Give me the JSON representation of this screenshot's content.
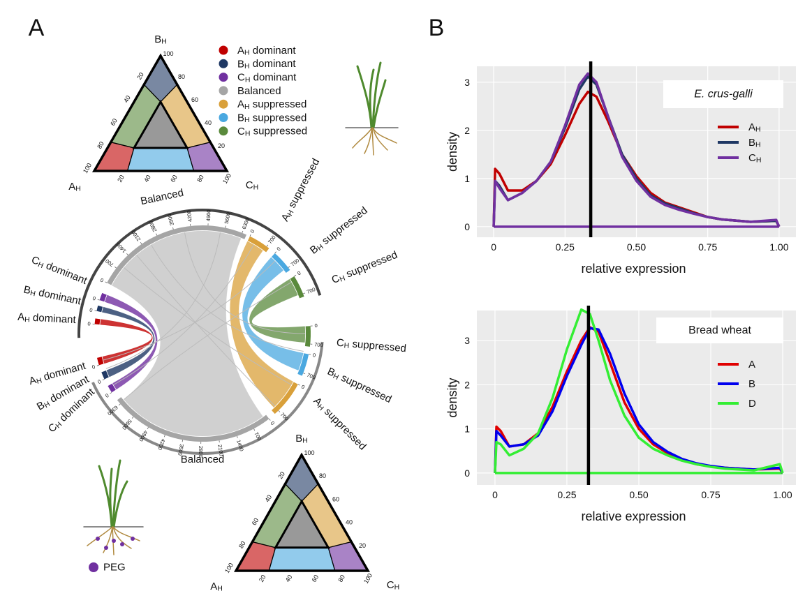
{
  "panel_labels": [
    "A",
    "B"
  ],
  "categories": [
    {
      "base": "A",
      "sub": "H",
      "rest": " dominant",
      "color": "#c00000"
    },
    {
      "base": "B",
      "sub": "H",
      "rest": " dominant",
      "color": "#1f3864"
    },
    {
      "base": "C",
      "sub": "H",
      "rest": " dominant",
      "color": "#7030a0"
    },
    {
      "base": "Balanced",
      "color": "#a5a5a5"
    },
    {
      "base": "A",
      "sub": "H",
      "rest": " suppressed",
      "color": "#d9a03a"
    },
    {
      "base": "B",
      "sub": "H",
      "rest": " suppressed",
      "color": "#4aa8e0"
    },
    {
      "base": "C",
      "sub": "H",
      "rest": " suppressed",
      "color": "#5a8a3c"
    }
  ],
  "chord": {
    "balanced_ticks": [
      0,
      700,
      1400,
      2100,
      2800,
      3500,
      4200,
      4900,
      5600,
      6300
    ],
    "group_ticks": [
      0,
      700
    ]
  },
  "ternary_ticks": [
    20,
    40,
    60,
    80,
    100
  ],
  "peg_label": "PEG",
  "chart_data": [
    {
      "type": "line",
      "legend_title": "E. crus-galli",
      "legend_italic": true,
      "x": [
        0,
        0.005,
        0.02,
        0.05,
        0.1,
        0.15,
        0.2,
        0.25,
        0.3,
        0.33,
        0.36,
        0.4,
        0.45,
        0.5,
        0.55,
        0.6,
        0.65,
        0.7,
        0.75,
        0.8,
        0.9,
        0.99,
        1.0
      ],
      "series": [
        {
          "name": "A",
          "name_sub": "H",
          "color": "#c00000",
          "values": [
            0,
            1.2,
            1.1,
            0.75,
            0.75,
            0.95,
            1.3,
            1.9,
            2.55,
            2.8,
            2.7,
            2.2,
            1.5,
            1.05,
            0.7,
            0.5,
            0.4,
            0.3,
            0.2,
            0.15,
            0.1,
            0.12,
            0
          ]
        },
        {
          "name": "B",
          "name_sub": "H",
          "color": "#1f3864",
          "values": [
            0,
            0.95,
            0.85,
            0.55,
            0.7,
            0.95,
            1.35,
            2.05,
            2.85,
            3.12,
            2.95,
            2.3,
            1.5,
            1.0,
            0.65,
            0.48,
            0.38,
            0.28,
            0.2,
            0.15,
            0.1,
            0.12,
            0
          ]
        },
        {
          "name": "C",
          "name_sub": "H",
          "color": "#7030a0",
          "values": [
            0,
            0.95,
            0.8,
            0.55,
            0.7,
            0.95,
            1.35,
            2.1,
            2.95,
            3.18,
            3.0,
            2.3,
            1.45,
            0.95,
            0.62,
            0.45,
            0.35,
            0.27,
            0.2,
            0.15,
            0.1,
            0.14,
            0
          ]
        }
      ],
      "xlim": [
        -0.059,
        1.059
      ],
      "ylim": [
        -0.22,
        3.33
      ],
      "xticks": [
        0,
        0.25,
        {
          "value": 0.5,
          "label": "0.50"
        },
        0.75,
        {
          "value": 1,
          "label": "1.00"
        }
      ],
      "yticks": [
        0,
        1,
        2,
        3
      ],
      "vline": 0.34,
      "xlabel": "relative expression",
      "ylabel": "density",
      "grid": true
    },
    {
      "type": "line",
      "legend_title": "Bread wheat",
      "legend_italic": false,
      "x": [
        0,
        0.005,
        0.02,
        0.05,
        0.1,
        0.15,
        0.2,
        0.25,
        0.3,
        0.33,
        0.36,
        0.4,
        0.45,
        0.5,
        0.55,
        0.6,
        0.65,
        0.7,
        0.75,
        0.8,
        0.9,
        0.99,
        1.0
      ],
      "series": [
        {
          "name": "A",
          "color": "#e00000",
          "values": [
            0,
            1.05,
            0.95,
            0.6,
            0.65,
            0.9,
            1.5,
            2.3,
            3.0,
            3.3,
            3.2,
            2.5,
            1.6,
            1.0,
            0.65,
            0.45,
            0.3,
            0.2,
            0.15,
            0.12,
            0.08,
            0.1,
            0
          ]
        },
        {
          "name": "B",
          "color": "#0000ee",
          "values": [
            0,
            0.95,
            0.85,
            0.6,
            0.65,
            0.85,
            1.4,
            2.2,
            2.9,
            3.28,
            3.25,
            2.7,
            1.8,
            1.1,
            0.7,
            0.48,
            0.32,
            0.22,
            0.16,
            0.12,
            0.08,
            0.12,
            0
          ]
        },
        {
          "name": "D",
          "color": "#33ee33",
          "values": [
            0,
            0.7,
            0.65,
            0.4,
            0.55,
            0.9,
            1.7,
            2.8,
            3.7,
            3.6,
            3.0,
            2.1,
            1.3,
            0.8,
            0.55,
            0.4,
            0.28,
            0.2,
            0.14,
            0.1,
            0.06,
            0.2,
            0
          ]
        }
      ],
      "xlim": [
        -0.063,
        1.046
      ],
      "ylim": [
        -0.27,
        3.68
      ],
      "xticks": [
        0,
        0.25,
        {
          "value": 0.5,
          "label": "0.50"
        },
        0.75,
        {
          "value": 1,
          "label": "1.00"
        }
      ],
      "yticks": [
        0,
        1,
        2,
        3
      ],
      "vline": 0.325,
      "xlabel": "relative expression",
      "ylabel": "density",
      "grid": true
    }
  ]
}
